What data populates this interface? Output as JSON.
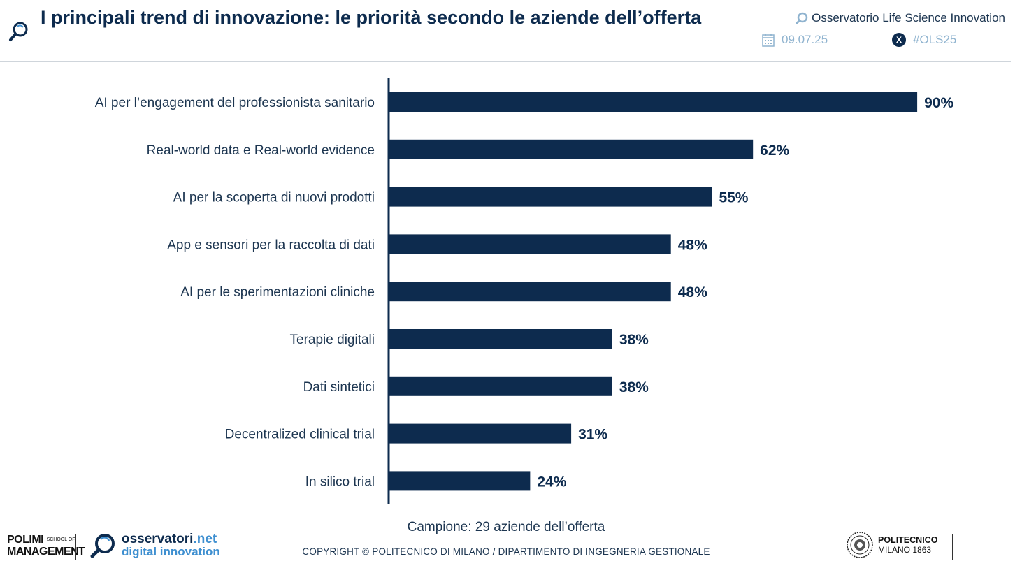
{
  "header": {
    "title": "I principali trend di innovazione: le priorità secondo le aziende dell’offerta",
    "observatory": "Osservatorio Life Science Innovation",
    "date": "09.07.25",
    "hashtag": "#OLS25",
    "x_icon_glyph": "X"
  },
  "chart_data": {
    "type": "bar",
    "orientation": "horizontal",
    "title": "I principali trend di innovazione: le priorità secondo le aziende dell’offerta",
    "categories": [
      "AI per l’engagement del professionista sanitario",
      "Real-world data e Real-world evidence",
      "AI per la scoperta di nuovi prodotti ",
      "App e sensori per la raccolta di dati ",
      "AI per le sperimentazioni cliniche",
      "Terapie digitali",
      "Dati sintetici",
      "Decentralized clinical trial ",
      "In silico trial"
    ],
    "values": [
      90,
      62,
      55,
      48,
      48,
      38,
      38,
      31,
      24
    ],
    "value_labels": [
      "90%",
      "62%",
      "55%",
      "48%",
      "48%",
      "38%",
      "38%",
      "31%",
      "24%"
    ],
    "unit": "%",
    "xlim": [
      0,
      100
    ],
    "xlabel": "",
    "ylabel": "",
    "grid": false,
    "bar_color": "#0d2b4e"
  },
  "footer": {
    "sample_note": "Campione: 29 aziende dell’offerta",
    "copyright": "COPYRIGHT © POLITECNICO DI MILANO / DIPARTIMENTO DI INGEGNERIA GESTIONALE",
    "polimi_line1": "POLIMI",
    "polimi_school": "SCHOOL OF",
    "polimi_line2": "MANAGEMENT",
    "osservatori_name": "osservatori",
    "osservatori_tld": ".net",
    "osservatori_sub": "digital innovation",
    "politecnico_line1": "POLITECNICO",
    "politecnico_line2": "MILANO 1863"
  },
  "colors": {
    "primary": "#0d2b4e",
    "accent": "#3e8fd0",
    "muted": "#8fb3cf"
  },
  "icons": [
    "search-icon",
    "calendar-icon",
    "x-logo-icon"
  ]
}
